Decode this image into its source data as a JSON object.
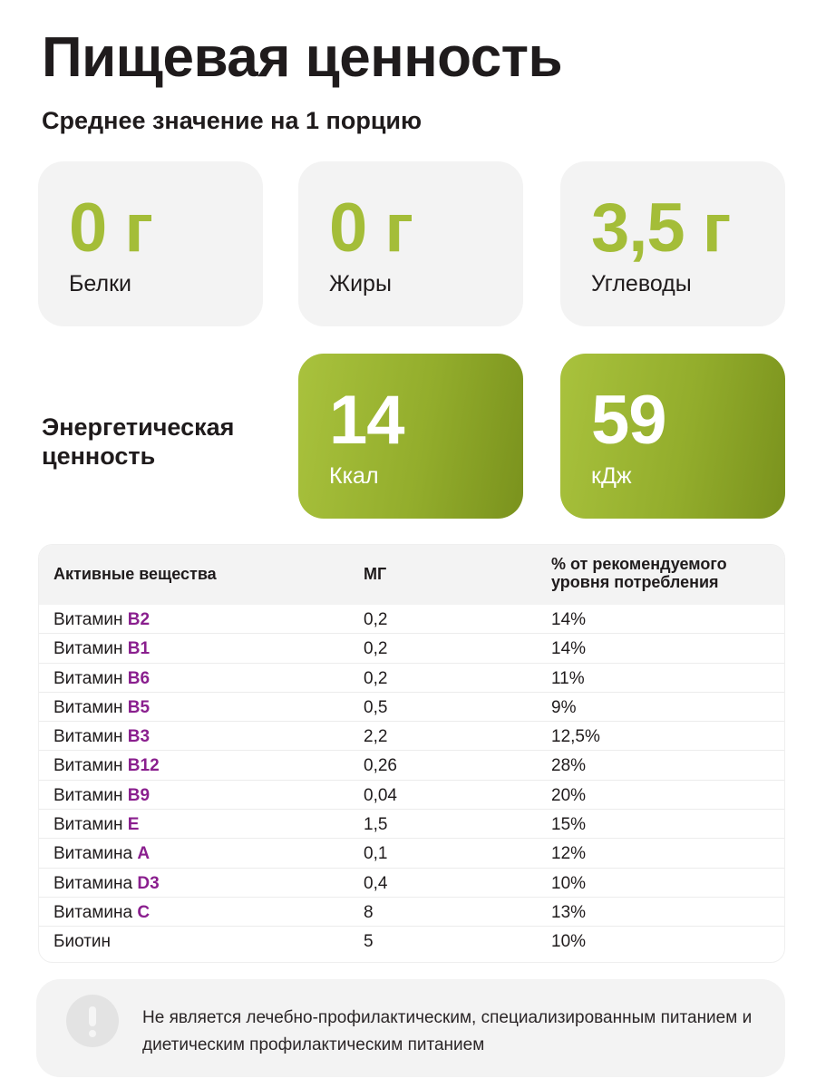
{
  "title": "Пищевая ценность",
  "subtitle": "Среднее значение на 1 порцию",
  "macros": [
    {
      "value": "0 г",
      "label": "Белки"
    },
    {
      "value": "0 г",
      "label": "Жиры"
    },
    {
      "value": "3,5 г",
      "label": "Углеводы"
    }
  ],
  "energy": {
    "title": "Энергетическая ценность",
    "kcal": {
      "value": "14",
      "label": "Ккал"
    },
    "kj": {
      "value": "59",
      "label": "кДж"
    }
  },
  "table": {
    "headers": [
      "Активные вещества",
      "МГ",
      "% от рекомендуемого уровня потребления"
    ],
    "rows": [
      {
        "prefix": "Витамин ",
        "name": "B2",
        "mg": "0,2",
        "pct": "14%"
      },
      {
        "prefix": "Витамин ",
        "name": "B1",
        "mg": "0,2",
        "pct": "14%"
      },
      {
        "prefix": "Витамин ",
        "name": "B6",
        "mg": "0,2",
        "pct": "11%"
      },
      {
        "prefix": "Витамин ",
        "name": "B5",
        "mg": "0,5",
        "pct": "9%"
      },
      {
        "prefix": "Витамин ",
        "name": "B3",
        "mg": "2,2",
        "pct": "12,5%"
      },
      {
        "prefix": "Витамин ",
        "name": "B12",
        "mg": "0,26",
        "pct": "28%"
      },
      {
        "prefix": "Витамин ",
        "name": "B9",
        "mg": "0,04",
        "pct": "20%"
      },
      {
        "prefix": "Витамин ",
        "name": "E",
        "mg": "1,5",
        "pct": "15%"
      },
      {
        "prefix": "Витамина ",
        "name": "A",
        "mg": "0,1",
        "pct": "12%"
      },
      {
        "prefix": "Витамина ",
        "name": "D3",
        "mg": "0,4",
        "pct": "10%"
      },
      {
        "prefix": "Витамина ",
        "name": "C",
        "mg": "8",
        "pct": "13%"
      },
      {
        "prefix": "Биотин",
        "name": "",
        "mg": "5",
        "pct": "10%"
      }
    ]
  },
  "notice": {
    "icon": "exclamation-icon",
    "text": "Не является лечебно-профилактическим, специализированным питанием и диетическим профилактическим питанием"
  },
  "colors": {
    "accent_green": "#a4bd38",
    "vitamin_purple": "#8a1f8e",
    "card_gray": "#f3f3f3"
  }
}
